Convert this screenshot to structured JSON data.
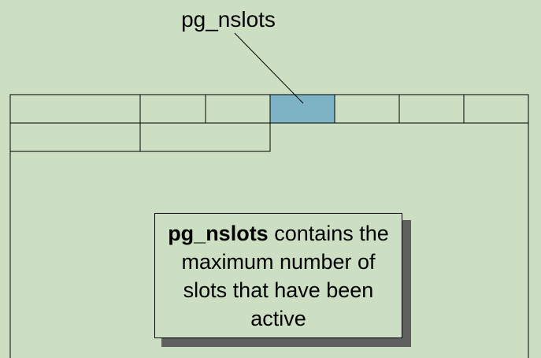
{
  "pointer_label": "pg_nslots",
  "note": {
    "term": "pg_nslots",
    "rest": " contains the maximum number of slots that have been active"
  },
  "colors": {
    "background": "#cddfc3",
    "highlight_cell": "#7db3c5",
    "border": "#000000",
    "shadow": "#606060"
  }
}
